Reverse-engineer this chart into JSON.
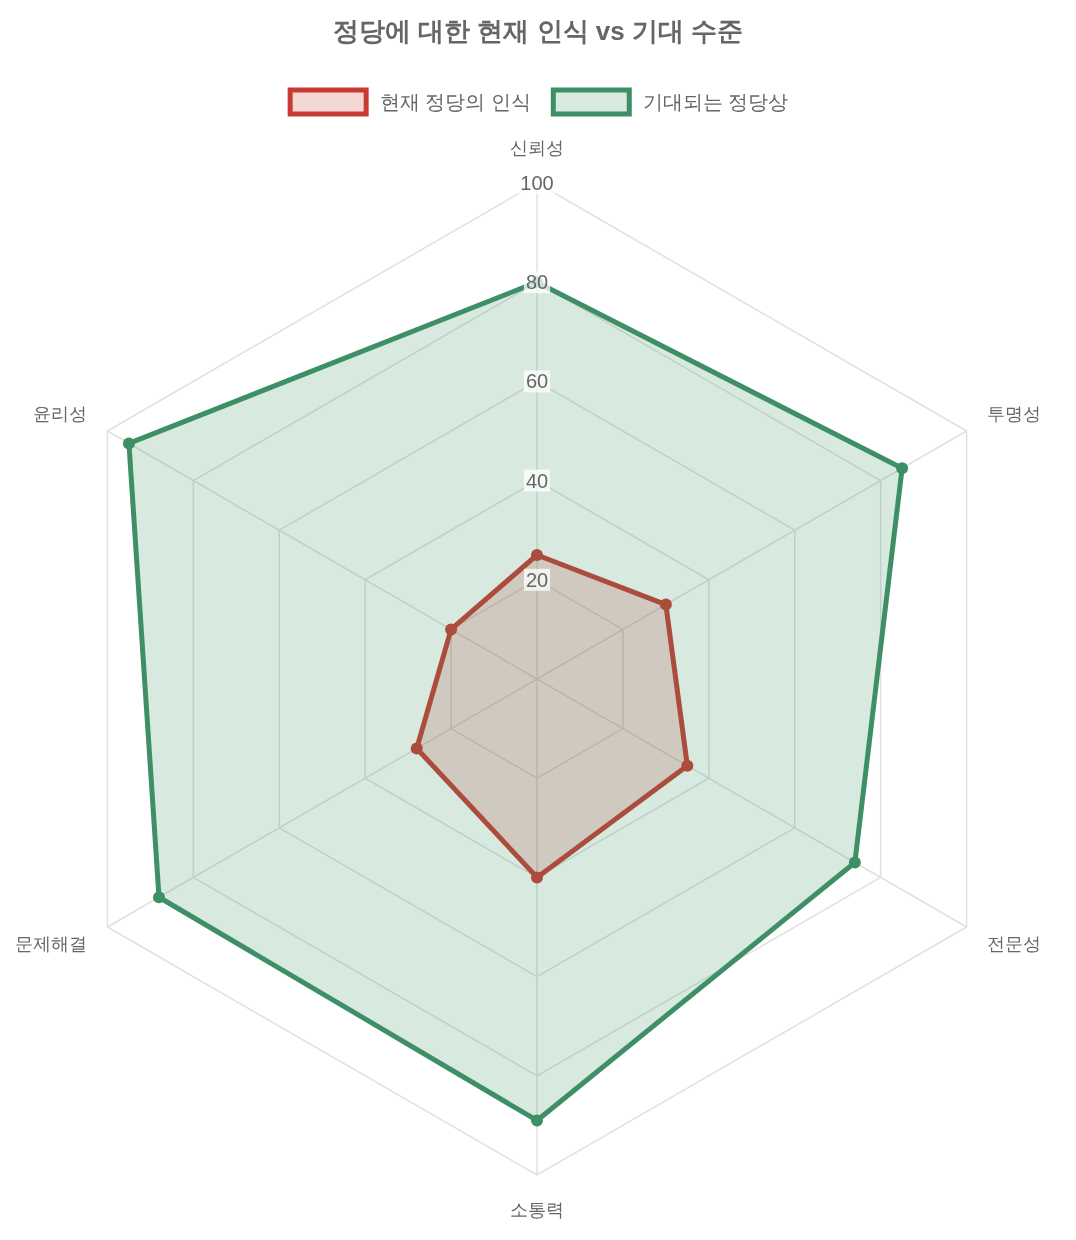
{
  "chart_data": {
    "type": "radar",
    "title": "정당에 대한 현재 인식 vs 기대 수준",
    "categories": [
      "신뢰성",
      "투명성",
      "전문성",
      "소통력",
      "문제해결",
      "윤리성"
    ],
    "series": [
      {
        "name": "현재 정당의 인식",
        "color": "#c83b33",
        "values": [
          25,
          30,
          35,
          40,
          28,
          20
        ]
      },
      {
        "name": "기대되는 정당상",
        "color": "#3e8f66",
        "values": [
          80,
          85,
          74,
          89,
          88,
          95
        ]
      }
    ],
    "ylim": [
      0,
      100
    ],
    "yticks": [
      20,
      40,
      60,
      80,
      100
    ],
    "grid": true,
    "legend": "top",
    "marker": "circle"
  }
}
